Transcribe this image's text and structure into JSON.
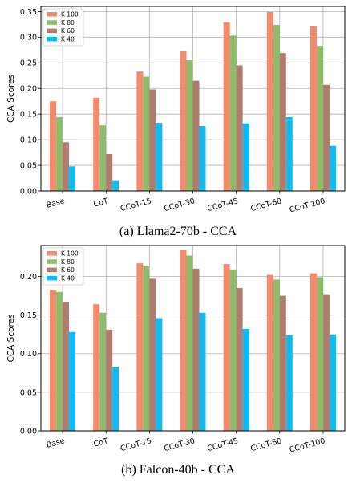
{
  "chart_data": [
    {
      "type": "bar",
      "caption": "(a) Llama2-70b - CCA",
      "ylabel": "CCA Scores",
      "categories": [
        "Base",
        "CoT",
        "CCoT-15",
        "CCoT-30",
        "CCoT-45",
        "CCoT-60",
        "CCoT-100"
      ],
      "ylim": [
        0,
        0.36
      ],
      "yticks": [
        0.0,
        0.05,
        0.1,
        0.15,
        0.2,
        0.25,
        0.3,
        0.35
      ],
      "grid": true,
      "legend_position": "top-left",
      "series": [
        {
          "name": "K 100",
          "color": "#f4896b",
          "values": [
            0.175,
            0.182,
            0.233,
            0.273,
            0.329,
            0.349,
            0.322
          ]
        },
        {
          "name": "K 80",
          "color": "#8fbc6a",
          "values": [
            0.144,
            0.128,
            0.223,
            0.255,
            0.303,
            0.324,
            0.283
          ]
        },
        {
          "name": "K 60",
          "color": "#b07c6e",
          "values": [
            0.095,
            0.072,
            0.198,
            0.215,
            0.245,
            0.269,
            0.207
          ]
        },
        {
          "name": "K 40",
          "color": "#0ebcf3",
          "values": [
            0.048,
            0.021,
            0.133,
            0.127,
            0.132,
            0.144,
            0.088
          ]
        }
      ]
    },
    {
      "type": "bar",
      "caption": "(b) Falcon-40b - CCA",
      "ylabel": "CCA Scores",
      "categories": [
        "Base",
        "CoT",
        "CCoT-15",
        "CCoT-30",
        "CCoT-45",
        "CCoT-60",
        "CCoT-100"
      ],
      "ylim": [
        0,
        0.24
      ],
      "yticks": [
        0.0,
        0.05,
        0.1,
        0.15,
        0.2
      ],
      "grid": true,
      "legend_position": "top-left",
      "series": [
        {
          "name": "K 100",
          "color": "#f4896b",
          "values": [
            0.182,
            0.164,
            0.217,
            0.234,
            0.216,
            0.202,
            0.204
          ]
        },
        {
          "name": "K 80",
          "color": "#8fbc6a",
          "values": [
            0.18,
            0.153,
            0.213,
            0.227,
            0.209,
            0.196,
            0.199
          ]
        },
        {
          "name": "K 60",
          "color": "#b07c6e",
          "values": [
            0.167,
            0.131,
            0.197,
            0.21,
            0.185,
            0.175,
            0.176
          ]
        },
        {
          "name": "K 40",
          "color": "#0ebcf3",
          "values": [
            0.128,
            0.083,
            0.146,
            0.153,
            0.132,
            0.124,
            0.125
          ]
        }
      ]
    }
  ]
}
